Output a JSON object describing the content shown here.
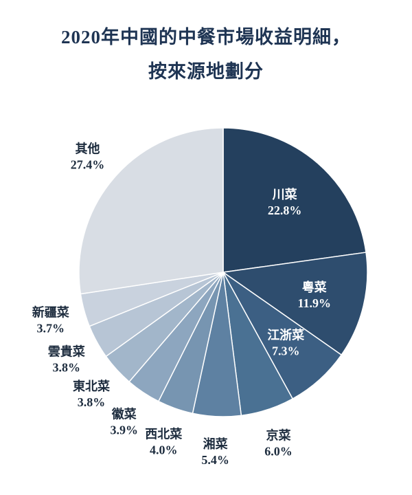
{
  "title": {
    "line1": "2020年中國的中餐市場收益明細，",
    "line2": "按來源地劃分"
  },
  "chart_data": {
    "type": "pie",
    "title": "2020年中國的中餐市場收益明細，按來源地劃分",
    "unit": "%",
    "start_angle_deg": 0,
    "direction": "clockwise",
    "slices": [
      {
        "name": "川菜",
        "value": 22.8,
        "color": "#24405e",
        "label_inside": true
      },
      {
        "name": "粵菜",
        "value": 11.9,
        "color": "#2e4d6e",
        "label_inside": true
      },
      {
        "name": "江浙菜",
        "value": 7.3,
        "color": "#3c5f83",
        "label_inside": true
      },
      {
        "name": "京菜",
        "value": 6.0,
        "color": "#4a7193",
        "label_inside": false
      },
      {
        "name": "湘菜",
        "value": 5.4,
        "color": "#5e81a2",
        "label_inside": false
      },
      {
        "name": "西北菜",
        "value": 4.0,
        "color": "#7795b1",
        "label_inside": false
      },
      {
        "name": "徽菜",
        "value": 3.9,
        "color": "#8da6bf",
        "label_inside": false
      },
      {
        "name": "東北菜",
        "value": 3.8,
        "color": "#a2b6ca",
        "label_inside": false
      },
      {
        "name": "雲貴菜",
        "value": 3.8,
        "color": "#b7c5d5",
        "label_inside": false
      },
      {
        "name": "新疆菜",
        "value": 3.7,
        "color": "#c9d2de",
        "label_inside": false
      },
      {
        "name": "其他",
        "value": 27.4,
        "color": "#d8dde4",
        "label_inside": false
      }
    ],
    "text_colors": {
      "inside": "#ffffff",
      "outside": "#1d2c3e"
    },
    "legend": "none",
    "grid": false
  }
}
